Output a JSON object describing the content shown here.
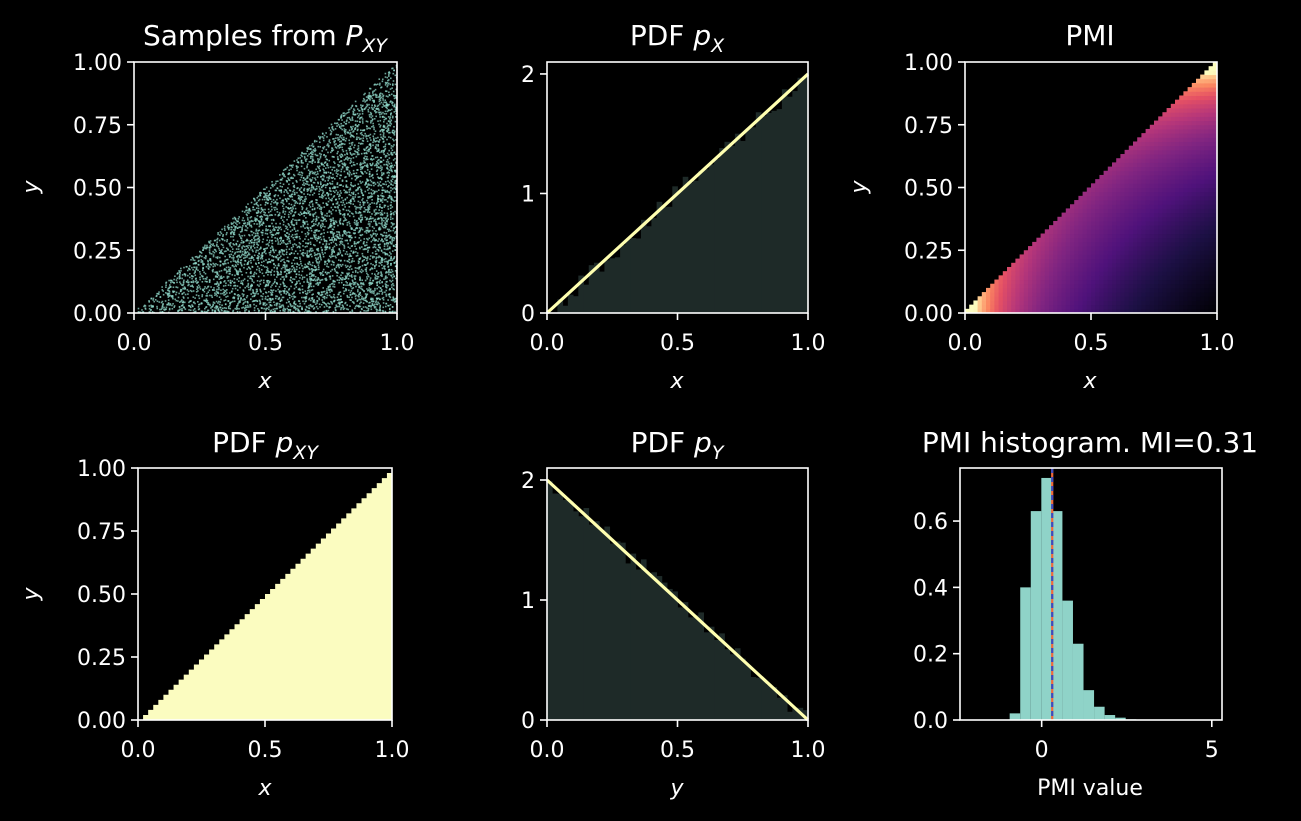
{
  "colors": {
    "background": "#000000",
    "foreground": "#ffffff",
    "samples": "#8fd7c8",
    "line": "#ffffb0",
    "hist_fill": "#1e2a28",
    "pxy_fill": "#fbfcc0",
    "pmi_hist": "#8fd3c8",
    "mi_line_orange": "#f06a3a",
    "mi_line_blue": "#3b4cc0"
  },
  "panels": {
    "samples": {
      "title_main": "Samples from ",
      "title_var": "P",
      "title_sub": "XY",
      "xlabel": "x",
      "ylabel": "y"
    },
    "pdf_x": {
      "title_main": "PDF ",
      "title_var": "p",
      "title_sub": "X",
      "xlabel": "x",
      "ylabel": ""
    },
    "pmi": {
      "title_main": "PMI",
      "title_var": "",
      "title_sub": "",
      "xlabel": "x",
      "ylabel": "y"
    },
    "pdf_xy": {
      "title_main": "PDF ",
      "title_var": "p",
      "title_sub": "XY",
      "xlabel": "x",
      "ylabel": "y"
    },
    "pdf_y": {
      "title_main": "PDF ",
      "title_var": "p",
      "title_sub": "Y",
      "xlabel": "y",
      "ylabel": ""
    },
    "pmi_hist": {
      "title_main": "PMI histogram. MI=0.31",
      "title_var": "",
      "title_sub": "",
      "xlabel": "PMI value",
      "ylabel": ""
    }
  },
  "chart_data": [
    {
      "id": "samples",
      "type": "scatter",
      "title": "Samples from P_XY",
      "xlabel": "x",
      "ylabel": "y",
      "xlim": [
        0,
        1
      ],
      "ylim": [
        0,
        1
      ],
      "xticks": [
        "0.0",
        "0.5",
        "1.0"
      ],
      "yticks": [
        "0.00",
        "0.25",
        "0.50",
        "0.75",
        "1.00"
      ],
      "support": "y < x",
      "grid": false
    },
    {
      "id": "pdf_x",
      "type": "line",
      "title": "PDF p_X",
      "xlabel": "x",
      "ylabel": "",
      "xlim": [
        0,
        1
      ],
      "ylim": [
        0,
        2.1
      ],
      "xticks": [
        "0.0",
        "0.5",
        "1.0"
      ],
      "yticks": [
        "0",
        "1",
        "2"
      ],
      "line": {
        "x": [
          0,
          1
        ],
        "y": [
          0,
          2
        ]
      },
      "histogram": {
        "description": "empirical density of samples, follows 2x"
      }
    },
    {
      "id": "pmi",
      "type": "heatmap",
      "title": "PMI",
      "xlabel": "x",
      "ylabel": "y",
      "xlim": [
        0,
        1
      ],
      "ylim": [
        0,
        1
      ],
      "xticks": [
        "0.0",
        "0.5",
        "1.0"
      ],
      "yticks": [
        "0.00",
        "0.25",
        "0.50",
        "0.75",
        "1.00"
      ],
      "colormap": "magma",
      "support": "y < x"
    },
    {
      "id": "pdf_xy",
      "type": "heatmap",
      "title": "PDF p_XY",
      "xlabel": "x",
      "ylabel": "y",
      "xlim": [
        0,
        1
      ],
      "ylim": [
        0,
        1
      ],
      "xticks": [
        "0.0",
        "0.5",
        "1.0"
      ],
      "yticks": [
        "0.00",
        "0.25",
        "0.50",
        "0.75",
        "1.00"
      ],
      "support": "y < x"
    },
    {
      "id": "pdf_y",
      "type": "line",
      "title": "PDF p_Y",
      "xlabel": "y",
      "ylabel": "",
      "xlim": [
        0,
        1
      ],
      "ylim": [
        0,
        2.1
      ],
      "xticks": [
        "0.0",
        "0.5",
        "1.0"
      ],
      "yticks": [
        "0",
        "1",
        "2"
      ],
      "line": {
        "x": [
          0,
          1
        ],
        "y": [
          2,
          0
        ]
      },
      "histogram": {
        "description": "empirical density of samples, follows 2(1-y)"
      }
    },
    {
      "id": "pmi_hist",
      "type": "bar",
      "title": "PMI histogram. MI=0.31",
      "xlabel": "PMI value",
      "ylabel": "",
      "xlim": [
        -2.4,
        5.3
      ],
      "ylim": [
        0,
        0.76
      ],
      "xticks": [
        "0",
        "5"
      ],
      "yticks": [
        "0.0",
        "0.2",
        "0.4",
        "0.6"
      ],
      "bins": [
        {
          "x0": -0.94,
          "x1": -0.63,
          "value": 0.02
        },
        {
          "x0": -0.63,
          "x1": -0.32,
          "value": 0.4
        },
        {
          "x0": -0.32,
          "x1": -0.01,
          "value": 0.63
        },
        {
          "x0": -0.01,
          "x1": 0.3,
          "value": 0.73
        },
        {
          "x0": 0.3,
          "x1": 0.61,
          "value": 0.63
        },
        {
          "x0": 0.61,
          "x1": 0.92,
          "value": 0.36
        },
        {
          "x0": 0.92,
          "x1": 1.23,
          "value": 0.23
        },
        {
          "x0": 1.23,
          "x1": 1.54,
          "value": 0.09
        },
        {
          "x0": 1.54,
          "x1": 1.85,
          "value": 0.04
        },
        {
          "x0": 1.85,
          "x1": 2.16,
          "value": 0.015
        },
        {
          "x0": 2.16,
          "x1": 2.47,
          "value": 0.007
        },
        {
          "x0": 2.47,
          "x1": 2.78,
          "value": 0.002
        }
      ],
      "mi": 0.31
    }
  ]
}
